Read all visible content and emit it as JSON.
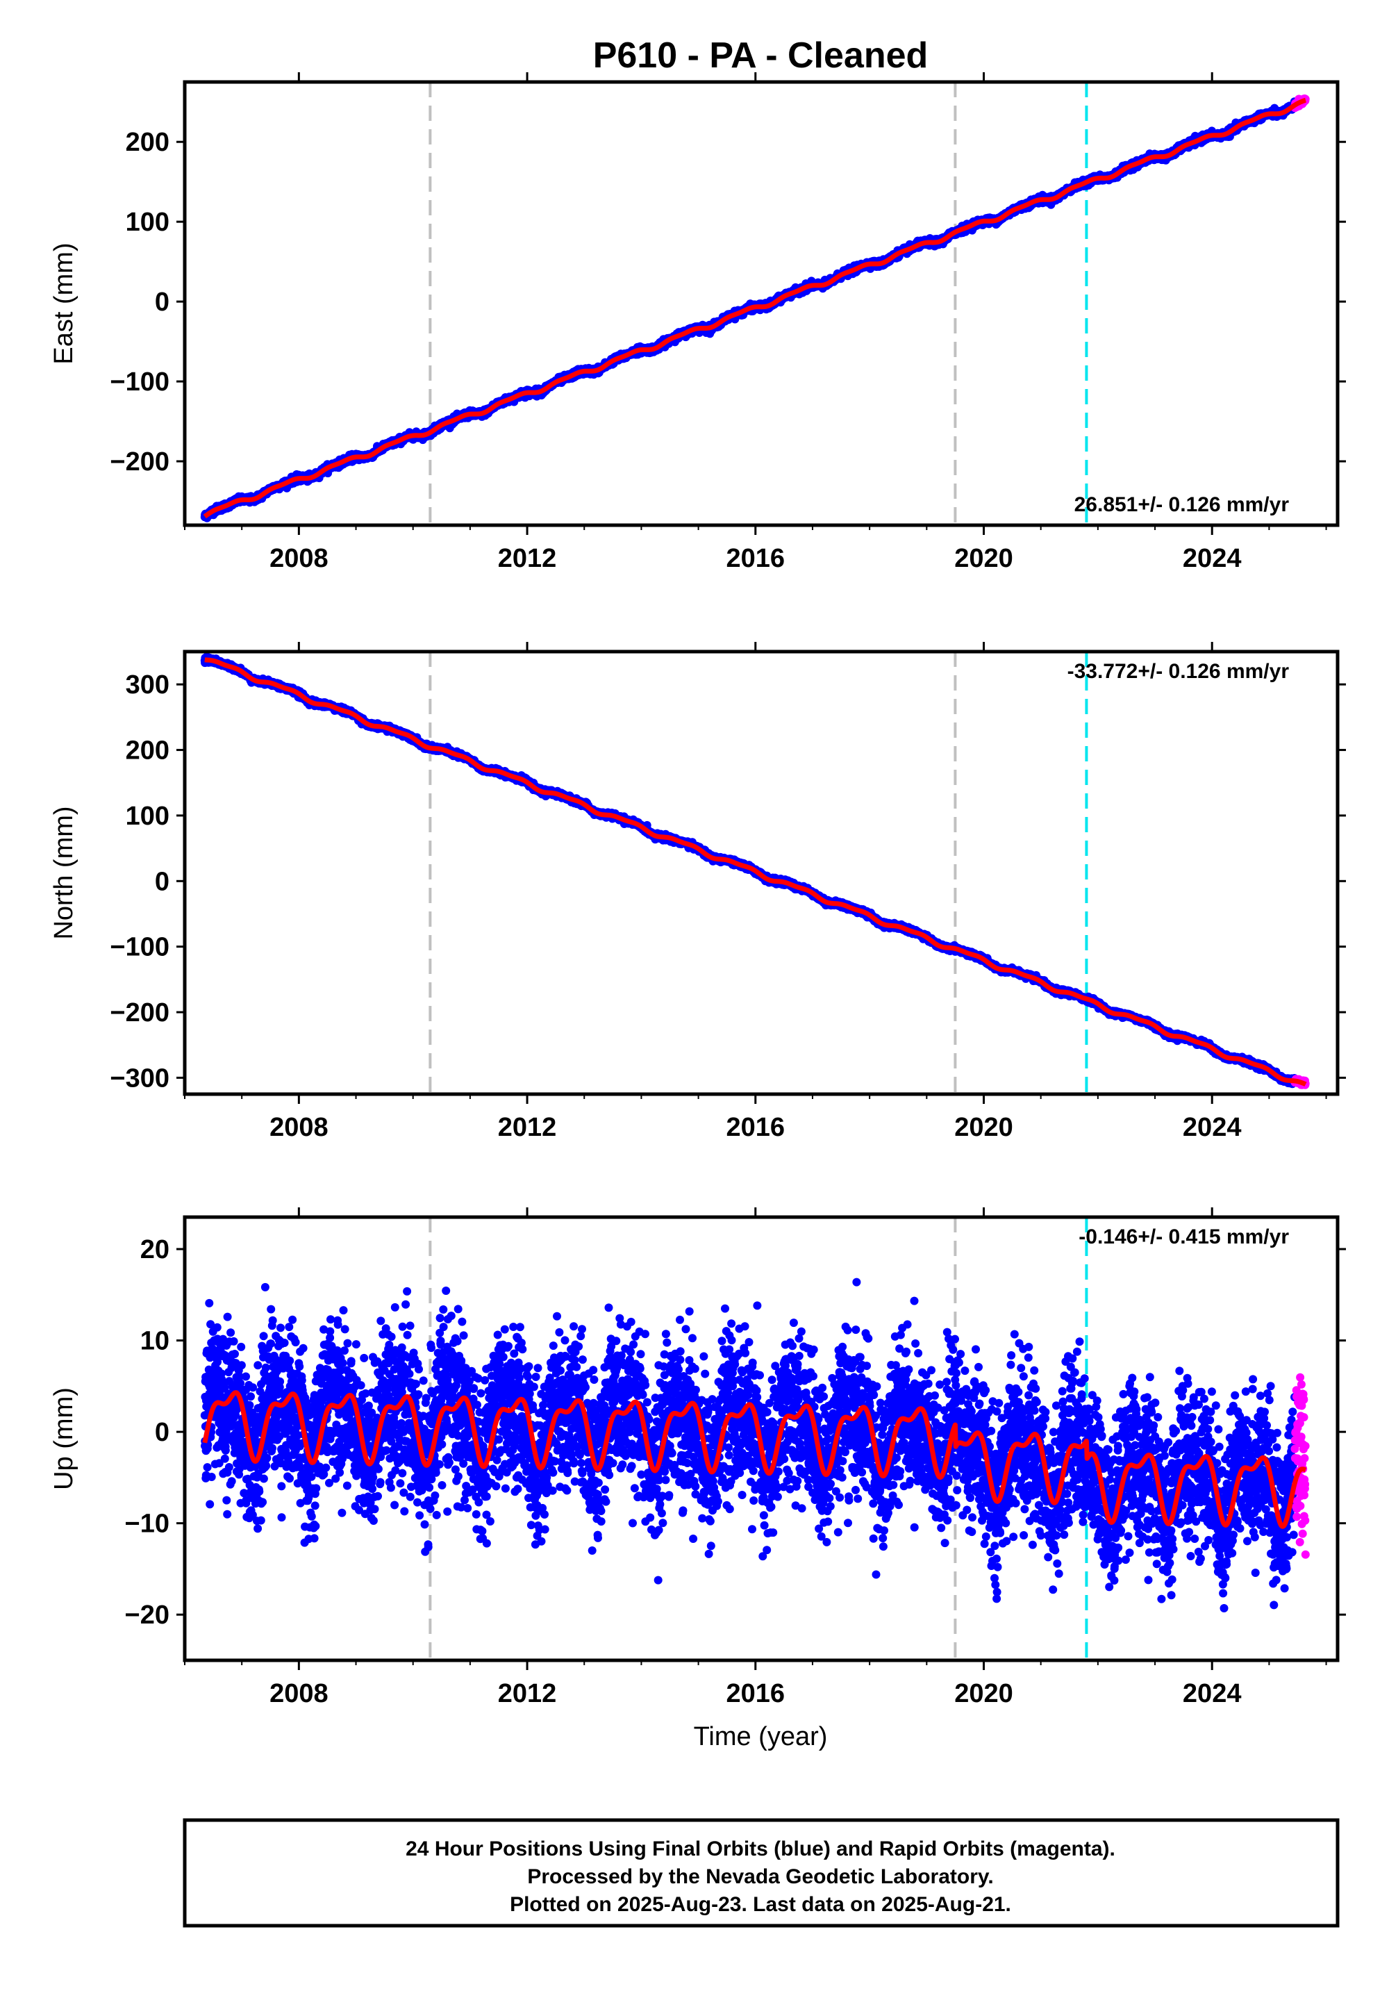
{
  "title": "P610  - PA - Cleaned",
  "colors": {
    "final_orbits": "#0000ff",
    "rapid_orbits": "#ff00ff",
    "model": "#ff0000",
    "equipment_change": "#c0c0c0",
    "earthquake": "#00e5ee",
    "frame": "#000000"
  },
  "x_axis": {
    "label": "Time (year)",
    "range": [
      2006.0,
      2026.2
    ],
    "tick_labels": [
      "2008",
      "2012",
      "2016",
      "2020",
      "2024"
    ]
  },
  "footer": {
    "line1": "24 Hour Positions Using Final Orbits (blue) and Rapid Orbits (magenta).",
    "line2": "Processed by the Nevada Geodetic Laboratory.",
    "line3": "Plotted on 2025-Aug-23. Last data on 2025-Aug-21."
  },
  "chart_data": [
    {
      "type": "scatter",
      "component": "East",
      "ylabel": "East (mm)",
      "ylim": [
        -280,
        275
      ],
      "y_ticks": [
        -200,
        -100,
        0,
        100,
        200
      ],
      "y_tick_labels": [
        "−200",
        "−100",
        "0",
        "100",
        "200"
      ],
      "rate_label": "26.851+/- 0.126 mm/yr",
      "rate_position": "bottom-right",
      "x_start": 2006.35,
      "x_end": 2025.64,
      "rapid_start": 2025.45,
      "trend": {
        "value_at_start": -267,
        "rate_mm_per_yr": 26.851
      },
      "seasonal_amplitude": 2.5,
      "noise": 2.0,
      "series": [
        {
          "name": "Final Orbits",
          "color": "#0000ff",
          "marker": "dot"
        },
        {
          "name": "Rapid Orbits",
          "color": "#ff00ff",
          "marker": "dot"
        },
        {
          "name": "Model",
          "color": "#ff0000",
          "marker": "line"
        }
      ],
      "vertical_lines": [
        {
          "x": 2010.3,
          "style": "dashed",
          "color": "#c0c0c0"
        },
        {
          "x": 2019.5,
          "style": "dashed",
          "color": "#c0c0c0"
        },
        {
          "x": 2021.8,
          "style": "dashed",
          "color": "#00e5ee"
        }
      ]
    },
    {
      "type": "scatter",
      "component": "North",
      "ylabel": "North (mm)",
      "ylim": [
        -325,
        350
      ],
      "y_ticks": [
        -300,
        -200,
        -100,
        0,
        100,
        200,
        300
      ],
      "y_tick_labels": [
        "−300",
        "−200",
        "−100",
        "0",
        "100",
        "200",
        "300"
      ],
      "rate_label": "-33.772+/- 0.126 mm/yr",
      "rate_position": "top-right",
      "x_start": 2006.35,
      "x_end": 2025.64,
      "rapid_start": 2025.45,
      "trend": {
        "value_at_start": 340,
        "rate_mm_per_yr": -33.772
      },
      "seasonal_amplitude": 3.0,
      "noise": 2.0,
      "series": [
        {
          "name": "Final Orbits",
          "color": "#0000ff",
          "marker": "dot"
        },
        {
          "name": "Rapid Orbits",
          "color": "#ff00ff",
          "marker": "dot"
        },
        {
          "name": "Model",
          "color": "#ff0000",
          "marker": "line"
        }
      ],
      "vertical_lines": [
        {
          "x": 2010.3,
          "style": "dashed",
          "color": "#c0c0c0"
        },
        {
          "x": 2019.5,
          "style": "dashed",
          "color": "#c0c0c0"
        },
        {
          "x": 2021.8,
          "style": "dashed",
          "color": "#00e5ee"
        }
      ]
    },
    {
      "type": "scatter",
      "component": "Up",
      "ylabel": "Up (mm)",
      "ylim": [
        -25,
        23.5
      ],
      "y_ticks": [
        -20,
        -10,
        0,
        10,
        20
      ],
      "y_tick_labels": [
        "−20",
        "−10",
        "0",
        "10",
        "20"
      ],
      "rate_label": "-0.146+/- 0.415 mm/yr",
      "rate_position": "top-right",
      "x_start": 2006.35,
      "x_end": 2025.64,
      "rapid_start": 2025.45,
      "trend": {
        "value_at_start": 1.5,
        "rate_mm_per_yr": -0.146
      },
      "seasonal_amplitude": 3.2,
      "noise": 4.0,
      "model_steps": [
        {
          "x": 2019.5,
          "offset": -2.5
        },
        {
          "x": 2021.8,
          "offset": -2.0
        }
      ],
      "series": [
        {
          "name": "Final Orbits",
          "color": "#0000ff",
          "marker": "dot"
        },
        {
          "name": "Rapid Orbits",
          "color": "#ff00ff",
          "marker": "dot"
        },
        {
          "name": "Model",
          "color": "#ff0000",
          "marker": "line"
        }
      ],
      "vertical_lines": [
        {
          "x": 2010.3,
          "style": "dashed",
          "color": "#c0c0c0"
        },
        {
          "x": 2019.5,
          "style": "dashed",
          "color": "#c0c0c0"
        },
        {
          "x": 2021.8,
          "style": "dashed",
          "color": "#00e5ee"
        }
      ]
    }
  ]
}
